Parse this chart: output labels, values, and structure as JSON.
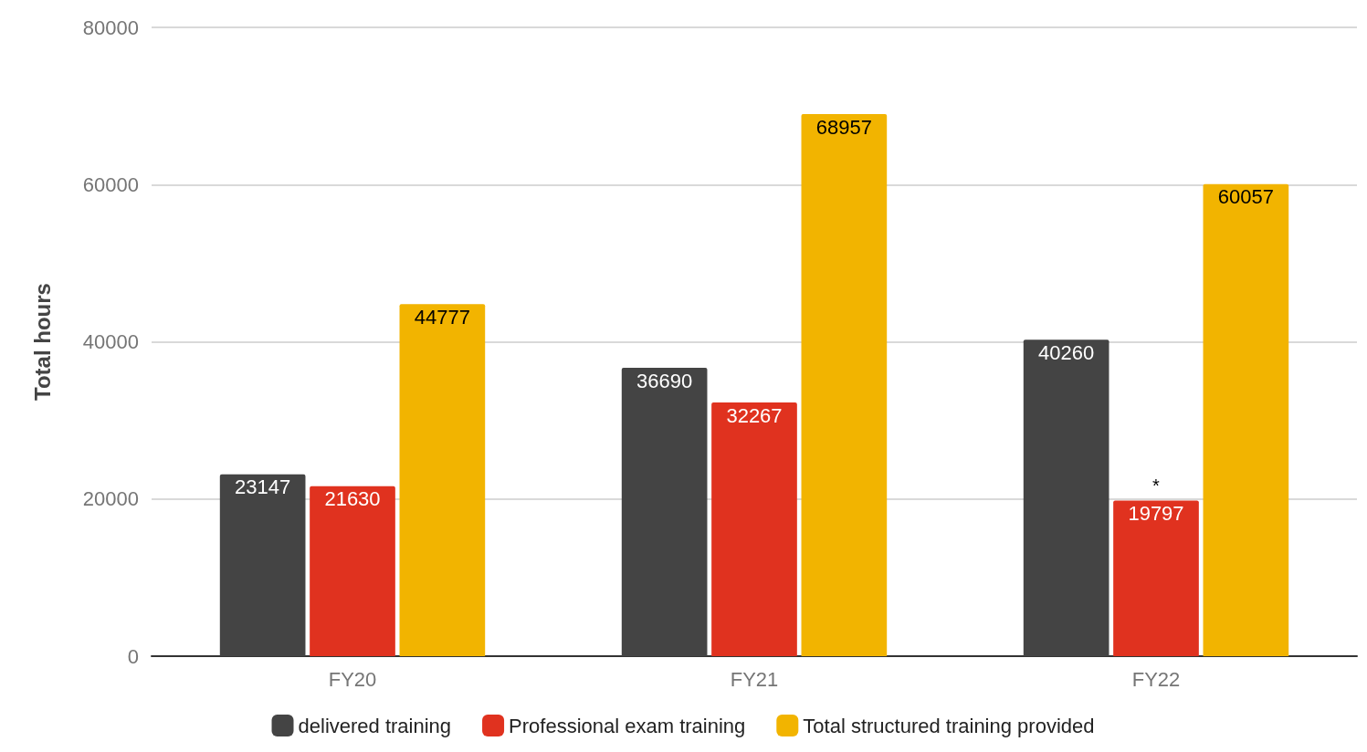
{
  "chart_data": {
    "type": "bar",
    "ylabel": "Total hours",
    "categories": [
      "FY20",
      "FY21",
      "FY22"
    ],
    "series": [
      {
        "name": "delivered training",
        "color": "#444444",
        "values": [
          23147,
          36690,
          40260
        ]
      },
      {
        "name": "Professional exam training",
        "color": "#e0321f",
        "values": [
          21630,
          32267,
          19797
        ]
      },
      {
        "name": "Total structured training provided",
        "color": "#f2b400",
        "values": [
          44777,
          68957,
          60057
        ]
      }
    ],
    "ylim": [
      0,
      80000
    ],
    "yticks": [
      0,
      20000,
      40000,
      60000,
      80000
    ],
    "grid": "y",
    "legend": "bottom",
    "data_labels": true,
    "annotations": [
      "*"
    ]
  }
}
